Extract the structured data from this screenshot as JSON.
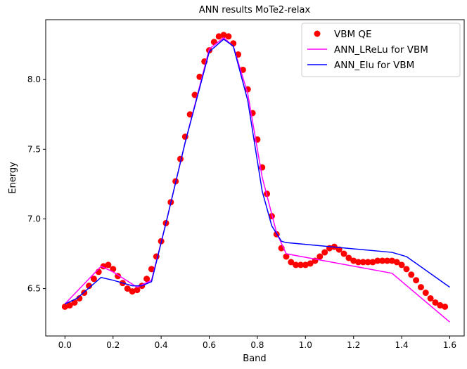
{
  "chart_data": {
    "type": "line",
    "title": "ANN results MoTe2-relax",
    "x_label": "Band",
    "y_label": "Energy",
    "xlim": [
      -0.08,
      1.66
    ],
    "ylim": [
      6.16,
      8.43
    ],
    "xticks": [
      {
        "value": 0,
        "label": "0.0"
      },
      {
        "value": 0.2,
        "label": "0.2"
      },
      {
        "value": 0.4,
        "label": "0.4"
      },
      {
        "value": 0.6,
        "label": "0.6"
      },
      {
        "value": 0.8,
        "label": "0.8"
      },
      {
        "value": 1.0,
        "label": "1.0"
      },
      {
        "value": 1.2,
        "label": "1.2"
      },
      {
        "value": 1.4,
        "label": "1.4"
      },
      {
        "value": 1.6,
        "label": "1.6"
      }
    ],
    "yticks": [
      {
        "value": 6.5,
        "label": "6.5"
      },
      {
        "value": 7.0,
        "label": "7.0"
      },
      {
        "value": 7.5,
        "label": "7.5"
      },
      {
        "value": 8.0,
        "label": "8.0"
      }
    ],
    "legend": "upper right",
    "series": [
      {
        "name": "VBM QE",
        "color": "#ff0000",
        "style": "markers",
        "x": [
          0,
          0.02,
          0.04,
          0.06,
          0.08,
          0.1,
          0.12,
          0.14,
          0.16,
          0.18,
          0.2,
          0.22,
          0.24,
          0.26,
          0.28,
          0.3,
          0.32,
          0.34,
          0.36,
          0.38,
          0.4,
          0.42,
          0.44,
          0.46,
          0.48,
          0.5,
          0.52,
          0.54,
          0.56,
          0.58,
          0.6,
          0.62,
          0.64,
          0.66,
          0.68,
          0.7,
          0.72,
          0.74,
          0.76,
          0.78,
          0.8,
          0.82,
          0.84,
          0.86,
          0.88,
          0.9,
          0.92,
          0.94,
          0.96,
          0.98,
          1.0,
          1.02,
          1.04,
          1.06,
          1.08,
          1.1,
          1.12,
          1.14,
          1.16,
          1.18,
          1.2,
          1.22,
          1.24,
          1.26,
          1.28,
          1.3,
          1.32,
          1.34,
          1.36,
          1.38,
          1.4,
          1.42,
          1.44,
          1.46,
          1.48,
          1.5,
          1.52,
          1.54,
          1.56,
          1.58
        ],
        "values": [
          6.37,
          6.38,
          6.4,
          6.43,
          6.47,
          6.52,
          6.57,
          6.62,
          6.66,
          6.67,
          6.64,
          6.59,
          6.54,
          6.5,
          6.48,
          6.49,
          6.52,
          6.57,
          6.64,
          6.73,
          6.84,
          6.97,
          7.12,
          7.27,
          7.43,
          7.59,
          7.75,
          7.89,
          8.02,
          8.13,
          8.21,
          8.27,
          8.31,
          8.32,
          8.31,
          8.26,
          8.18,
          8.07,
          7.93,
          7.76,
          7.57,
          7.37,
          7.18,
          7.02,
          6.89,
          6.79,
          6.73,
          6.69,
          6.67,
          6.67,
          6.67,
          6.68,
          6.7,
          6.73,
          6.76,
          6.79,
          6.8,
          6.78,
          6.75,
          6.72,
          6.7,
          6.69,
          6.69,
          6.69,
          6.69,
          6.7,
          6.7,
          6.7,
          6.7,
          6.69,
          6.67,
          6.64,
          6.6,
          6.56,
          6.51,
          6.47,
          6.43,
          6.4,
          6.38,
          6.37
        ]
      },
      {
        "name": "ANN_LReLu for VBM",
        "color": "#ff00ff",
        "style": "line",
        "x": [
          0,
          0.15,
          0.2,
          0.3,
          0.36,
          0.42,
          0.5,
          0.6,
          0.66,
          0.7,
          0.76,
          0.82,
          0.88,
          0.92,
          1.36,
          1.6
        ],
        "values": [
          6.39,
          6.66,
          6.62,
          6.51,
          6.56,
          6.97,
          7.55,
          8.22,
          8.3,
          8.24,
          7.9,
          7.3,
          6.9,
          6.75,
          6.61,
          6.26
        ]
      },
      {
        "name": "ANN_Elu for VBM",
        "color": "#0000ff",
        "style": "line",
        "x": [
          0,
          0.05,
          0.15,
          0.2,
          0.28,
          0.32,
          0.36,
          0.42,
          0.5,
          0.6,
          0.66,
          0.7,
          0.76,
          0.82,
          0.86,
          0.9,
          0.92,
          1.36,
          1.42,
          1.6
        ],
        "values": [
          6.39,
          6.43,
          6.58,
          6.56,
          6.52,
          6.52,
          6.55,
          6.97,
          7.55,
          8.2,
          8.29,
          8.24,
          7.85,
          7.2,
          6.95,
          6.84,
          6.83,
          6.76,
          6.73,
          6.51
        ]
      }
    ]
  }
}
